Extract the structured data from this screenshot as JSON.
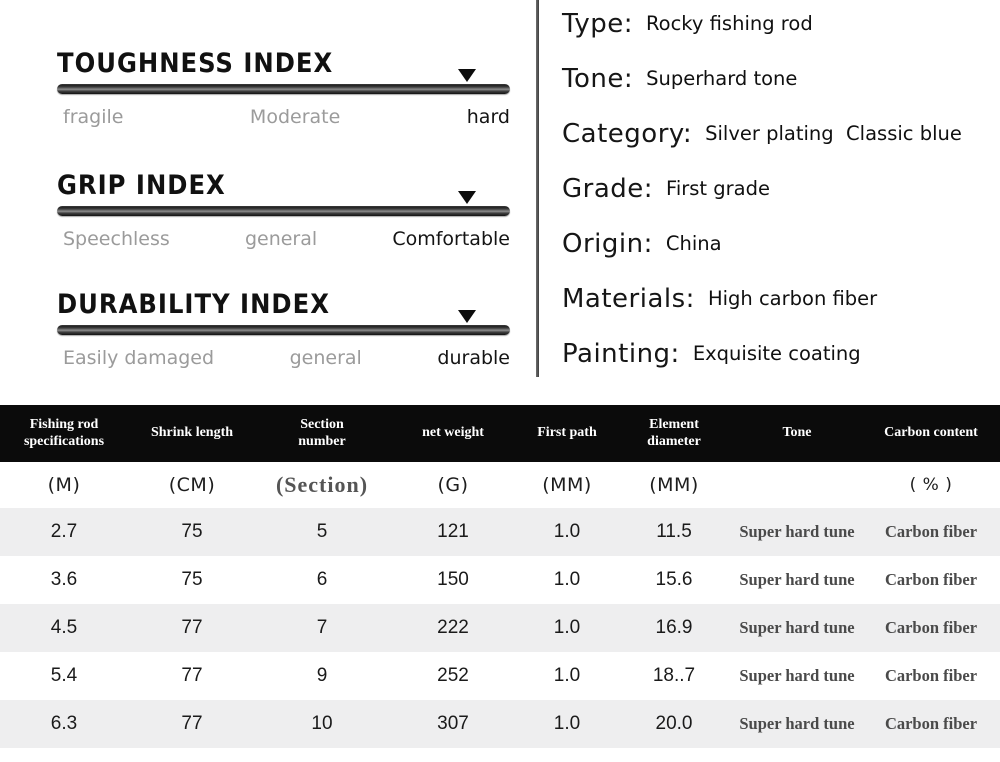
{
  "indexes": [
    {
      "title": "TOUGHNESS INDEX",
      "labels": [
        "fragile",
        "Moderate",
        "hard"
      ]
    },
    {
      "title": "GRIP INDEX",
      "labels": [
        "Speechless",
        "general",
        "Comfortable"
      ]
    },
    {
      "title": "DURABILITY INDEX",
      "labels": [
        "Easily damaged",
        "general",
        "durable"
      ]
    }
  ],
  "attributes": [
    {
      "label": "Type:",
      "value": "Rocky fishing rod"
    },
    {
      "label": "Tone:",
      "value": "Superhard tone"
    },
    {
      "label": "Category:",
      "value": "Silver plating  Classic blue"
    },
    {
      "label": "Grade:",
      "value": "First grade"
    },
    {
      "label": "Origin:",
      "value": "China"
    },
    {
      "label": "Materials:",
      "value": "High carbon fiber"
    },
    {
      "label": "Painting:",
      "value": "Exquisite coating"
    }
  ],
  "table": {
    "headers": [
      "Fishing rod\nspecifications",
      "Shrink length",
      "Section\nnumber",
      "net weight",
      "First path",
      "Element\ndiameter",
      "Tone",
      "Carbon content"
    ],
    "units": [
      "(M)",
      "(CM)",
      "(Section)",
      "(G)",
      "(MM)",
      "(MM)",
      "",
      "( % )"
    ],
    "rows": [
      [
        "2.7",
        "75",
        "5",
        "121",
        "1.0",
        "11.5",
        "Super hard tune",
        "Carbon fiber"
      ],
      [
        "3.6",
        "75",
        "6",
        "150",
        "1.0",
        "15.6",
        "Super hard tune",
        "Carbon fiber"
      ],
      [
        "4.5",
        "77",
        "7",
        "222",
        "1.0",
        "16.9",
        "Super hard tune",
        "Carbon fiber"
      ],
      [
        "5.4",
        "77",
        "9",
        "252",
        "1.0",
        "18..7",
        "Super hard tune",
        "Carbon fiber"
      ],
      [
        "6.3",
        "77",
        "10",
        "307",
        "1.0",
        "20.0",
        "Super hard tune",
        "Carbon fiber"
      ]
    ]
  },
  "colors": {
    "table_header_bg": "#0b0b0b",
    "table_header_text": "#ffffff",
    "row_stripe": "#eeeeef",
    "bar_dark": "#1d1d1d",
    "gray_label": "#9b9b9b",
    "serif_text": "#4a4a4a",
    "divider": "#4e4e4e"
  }
}
